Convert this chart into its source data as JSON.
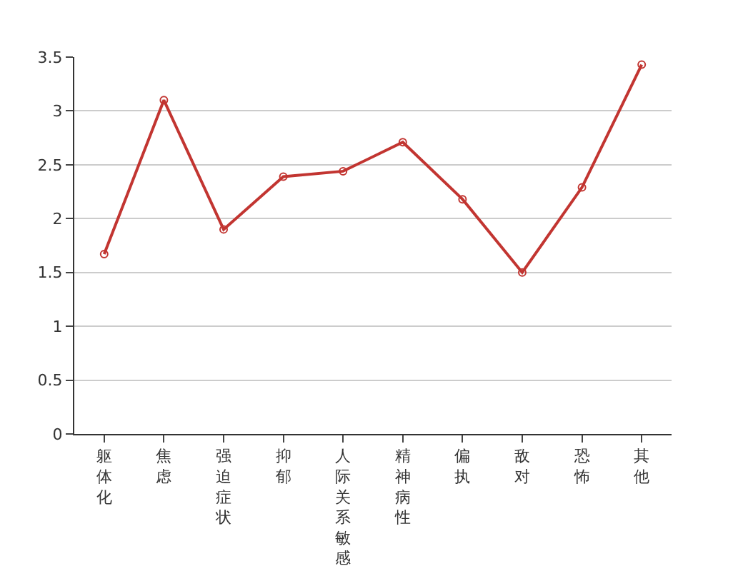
{
  "chart_data": {
    "type": "line",
    "categories": [
      "躯体化",
      "焦虑",
      "强迫症状",
      "抑郁",
      "人际关系敏感",
      "精神病性",
      "偏执",
      "敌对",
      "恐怖",
      "其他"
    ],
    "series": [
      {
        "color": "#c23531",
        "values": [
          1.67,
          3.1,
          1.9,
          2.39,
          2.44,
          2.71,
          2.18,
          1.5,
          2.29,
          3.43
        ]
      }
    ],
    "ylim": [
      0,
      3.5
    ],
    "yticks": [
      0,
      0.5,
      1,
      1.5,
      2,
      2.5,
      3,
      3.5
    ],
    "grid": "y",
    "marker": "circle",
    "line_style": "solid",
    "legend": false
  }
}
